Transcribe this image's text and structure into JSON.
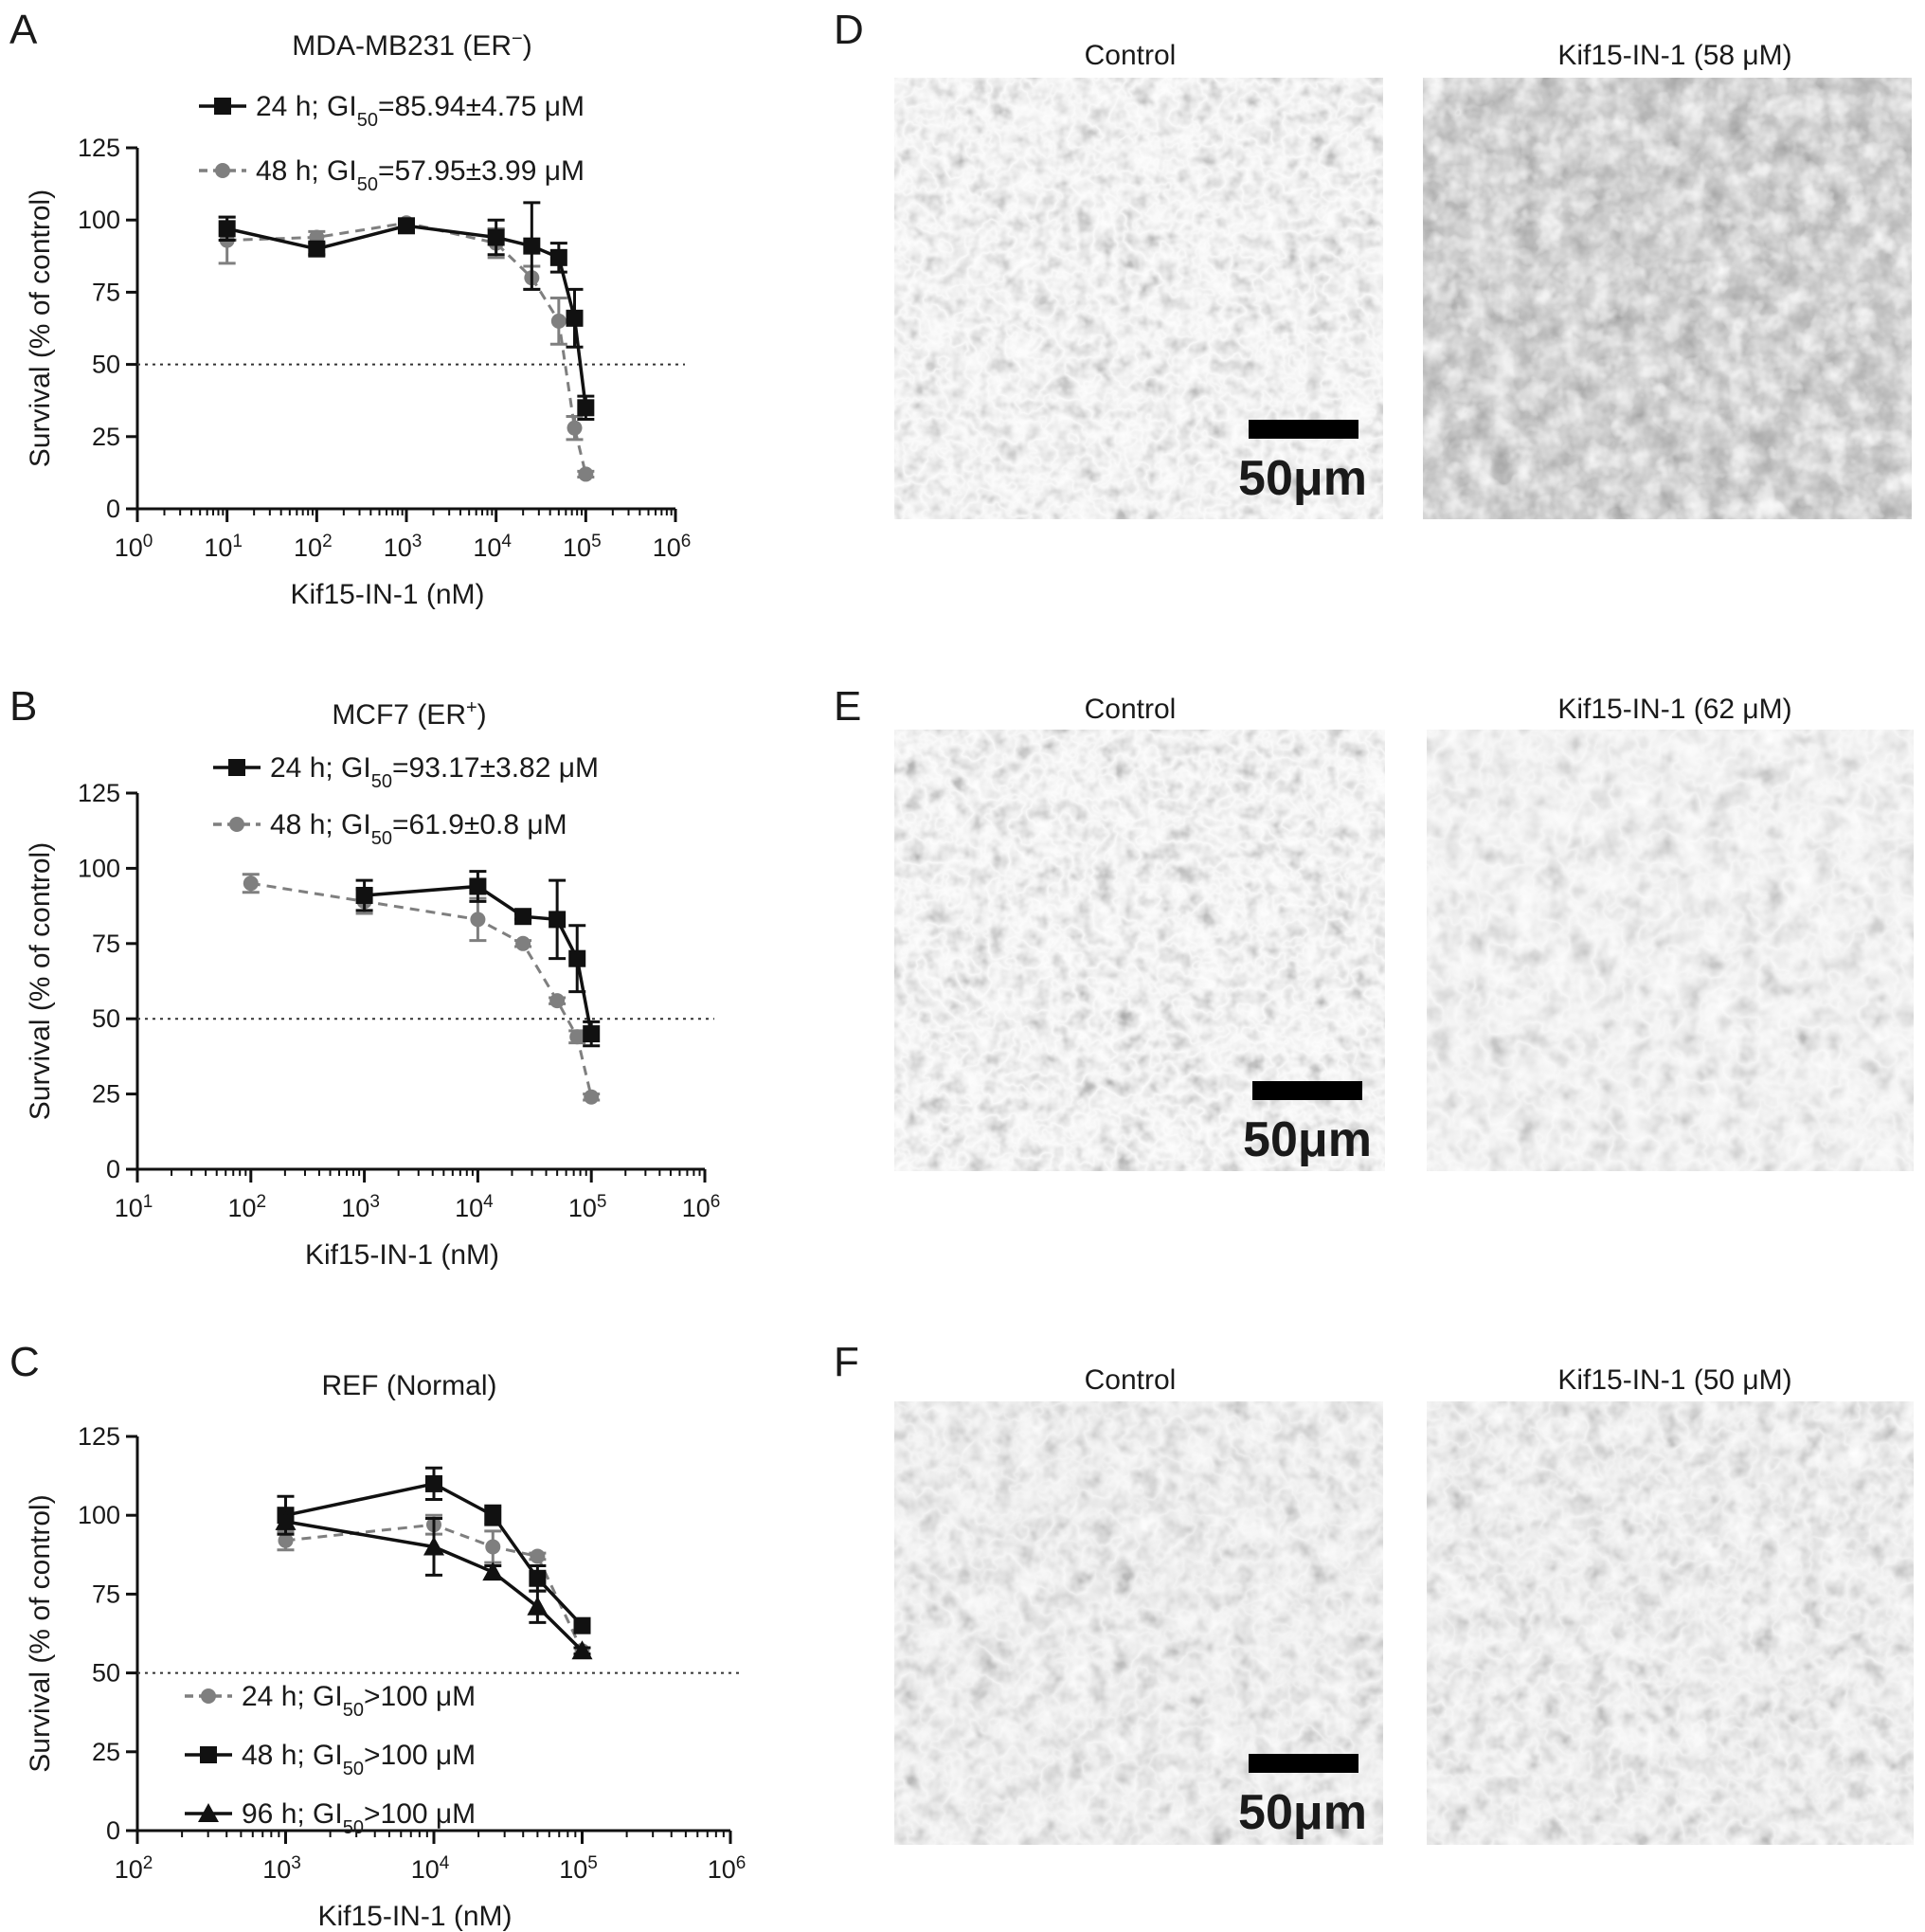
{
  "panels": {
    "a": "A",
    "b": "B",
    "c": "C",
    "d": "D",
    "e": "E",
    "f": "F"
  },
  "images": {
    "control_title": "Control",
    "d_treated_title": "Kif15-IN-1 (58 μM)",
    "e_treated_title": "Kif15-IN-1 (62 μM)",
    "f_treated_title": "Kif15-IN-1 (50 μM)",
    "scale_bar_label": "50μm"
  },
  "chart_data": [
    {
      "type": "line",
      "title_main": "MDA-MB231 (ER",
      "title_sup": "−",
      "title_end": ")",
      "xlabel": "Kif15-IN-1 (nM)",
      "ylabel": "Survival (% of control)",
      "x_scale": "log",
      "xlim_exp": [
        0,
        6
      ],
      "xtick_labels": [
        "10",
        "10",
        "10",
        "10",
        "10",
        "10",
        "10"
      ],
      "xtick_exps": [
        "0",
        "1",
        "2",
        "3",
        "4",
        "5",
        "6"
      ],
      "ylim": [
        0,
        125
      ],
      "yticks": [
        "0",
        "25",
        "50",
        "75",
        "100",
        "125"
      ],
      "reference_line": 50,
      "legend_position": "top-left",
      "series": [
        {
          "name_pre": "24 h; GI",
          "name_sub": "50",
          "name_post": "=85.94±4.75 μM",
          "style": "solid",
          "color": "#111111",
          "marker": "square",
          "x": [
            10,
            100,
            1000,
            10000,
            25000,
            50000,
            75000,
            100000
          ],
          "y": [
            97,
            90,
            98,
            94,
            91,
            87,
            66,
            35
          ],
          "err": [
            4,
            2,
            2,
            6,
            15,
            5,
            10,
            4
          ]
        },
        {
          "name_pre": "48 h; GI",
          "name_sub": "50",
          "name_post": "=57.95±3.99 μM",
          "style": "dashed",
          "color": "#7f7f7f",
          "marker": "circle",
          "x": [
            10,
            100,
            1000,
            10000,
            25000,
            50000,
            75000,
            100000
          ],
          "y": [
            93,
            94,
            99,
            92,
            80,
            65,
            28,
            12
          ],
          "err": [
            8,
            2,
            1,
            5,
            4,
            8,
            4,
            1
          ]
        }
      ]
    },
    {
      "type": "line",
      "title_main": "MCF7 (ER",
      "title_sup": "+",
      "title_end": ")",
      "xlabel": "Kif15-IN-1 (nM)",
      "ylabel": "Survival (% of control)",
      "x_scale": "log",
      "xlim_exp": [
        1,
        6
      ],
      "xtick_labels": [
        "10",
        "10",
        "10",
        "10",
        "10",
        "10"
      ],
      "xtick_exps": [
        "1",
        "2",
        "3",
        "4",
        "5",
        "6"
      ],
      "ylim": [
        0,
        125
      ],
      "yticks": [
        "0",
        "25",
        "50",
        "75",
        "100",
        "125"
      ],
      "reference_line": 50,
      "legend_position": "top-left",
      "series": [
        {
          "name_pre": "24 h; GI",
          "name_sub": "50",
          "name_post": "=93.17±3.82 μM",
          "style": "solid",
          "color": "#111111",
          "marker": "square",
          "x": [
            1000,
            10000,
            25000,
            50000,
            75000,
            100000
          ],
          "y": [
            91,
            94,
            84,
            83,
            70,
            45
          ],
          "err": [
            5,
            5,
            1,
            13,
            11,
            4
          ]
        },
        {
          "name_pre": "48 h; GI",
          "name_sub": "50",
          "name_post": "=61.9±0.8 μM",
          "style": "dashed",
          "color": "#7f7f7f",
          "marker": "circle",
          "x": [
            100,
            1000,
            10000,
            25000,
            50000,
            75000,
            100000
          ],
          "y": [
            95,
            89,
            83,
            75,
            56,
            44,
            24
          ],
          "err": [
            3,
            4,
            7,
            1,
            1,
            2,
            1
          ]
        }
      ]
    },
    {
      "type": "line",
      "title_main": "REF (Normal)",
      "title_sup": "",
      "title_end": "",
      "xlabel": "Kif15-IN-1 (nM)",
      "ylabel": "Survival (% of control)",
      "x_scale": "log",
      "xlim_exp": [
        2,
        6
      ],
      "xtick_labels": [
        "10",
        "10",
        "10",
        "10",
        "10"
      ],
      "xtick_exps": [
        "2",
        "3",
        "4",
        "5",
        "6"
      ],
      "ylim": [
        0,
        125
      ],
      "yticks": [
        "0",
        "25",
        "50",
        "75",
        "100",
        "125"
      ],
      "reference_line": 50,
      "legend_position": "bottom-left",
      "series": [
        {
          "name_pre": "24 h; GI",
          "name_sub": "50",
          "name_post": ">100 μM",
          "style": "dashed",
          "color": "#7f7f7f",
          "marker": "circle",
          "x": [
            1000,
            10000,
            25000,
            50000,
            100000
          ],
          "y": [
            92,
            97,
            90,
            87,
            57
          ],
          "err": [
            3,
            3,
            5,
            1,
            1
          ]
        },
        {
          "name_pre": "48 h; GI",
          "name_sub": "50",
          "name_post": ">100 μM",
          "style": "solid",
          "color": "#111111",
          "marker": "square",
          "x": [
            1000,
            10000,
            25000,
            50000,
            100000
          ],
          "y": [
            100,
            110,
            100,
            80,
            65
          ],
          "err": [
            6,
            5,
            3,
            4,
            1
          ]
        },
        {
          "name_pre": "96 h; GI",
          "name_sub": "50",
          "name_post": ">100 μM",
          "style": "solid",
          "color": "#111111",
          "marker": "triangle",
          "x": [
            1000,
            10000,
            25000,
            50000,
            100000
          ],
          "y": [
            98,
            90,
            82,
            71,
            57
          ],
          "err": [
            4,
            9,
            2,
            5,
            1
          ]
        }
      ]
    }
  ]
}
